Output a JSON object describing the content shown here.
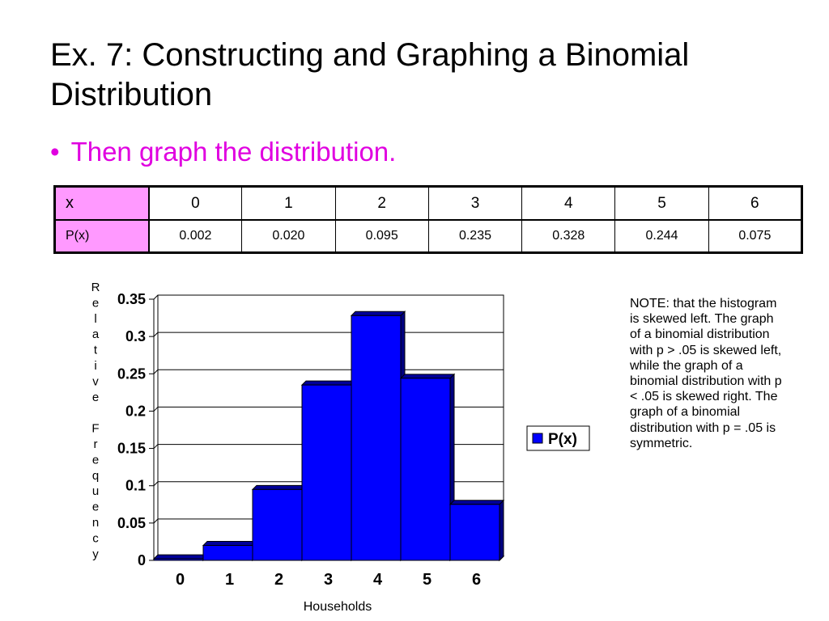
{
  "slide": {
    "title": "Ex. 7:  Constructing and Graphing a Binomial Distribution",
    "bullet": "Then graph the distribution."
  },
  "table": {
    "row_headers": [
      "x",
      "P(x)"
    ],
    "x": [
      "0",
      "1",
      "2",
      "3",
      "4",
      "5",
      "6"
    ],
    "p": [
      "0.002",
      "0.020",
      "0.095",
      "0.235",
      "0.328",
      "0.244",
      "0.075"
    ],
    "header_color": "#ff99ff"
  },
  "chart_data": {
    "type": "bar",
    "categories": [
      "0",
      "1",
      "2",
      "3",
      "4",
      "5",
      "6"
    ],
    "series": [
      {
        "name": "P(x)",
        "values": [
          0.002,
          0.02,
          0.095,
          0.235,
          0.328,
          0.244,
          0.075
        ],
        "color": "#0000ff"
      }
    ],
    "xlabel": "Households",
    "ylabel": "Relative Frequency",
    "ylim": [
      0,
      0.35
    ],
    "yticks": [
      "0",
      "0.05",
      "0.1",
      "0.15",
      "0.2",
      "0.25",
      "0.3",
      "0.35"
    ],
    "grid": true,
    "legend": "right"
  },
  "note": "NOTE:  that the histogram is skewed left.  The graph of a binomial distribution with p > .05 is skewed left, while the graph of a binomial distribution with p < .05 is skewed right.  The graph of a binomial distribution with p = .05 is symmetric."
}
